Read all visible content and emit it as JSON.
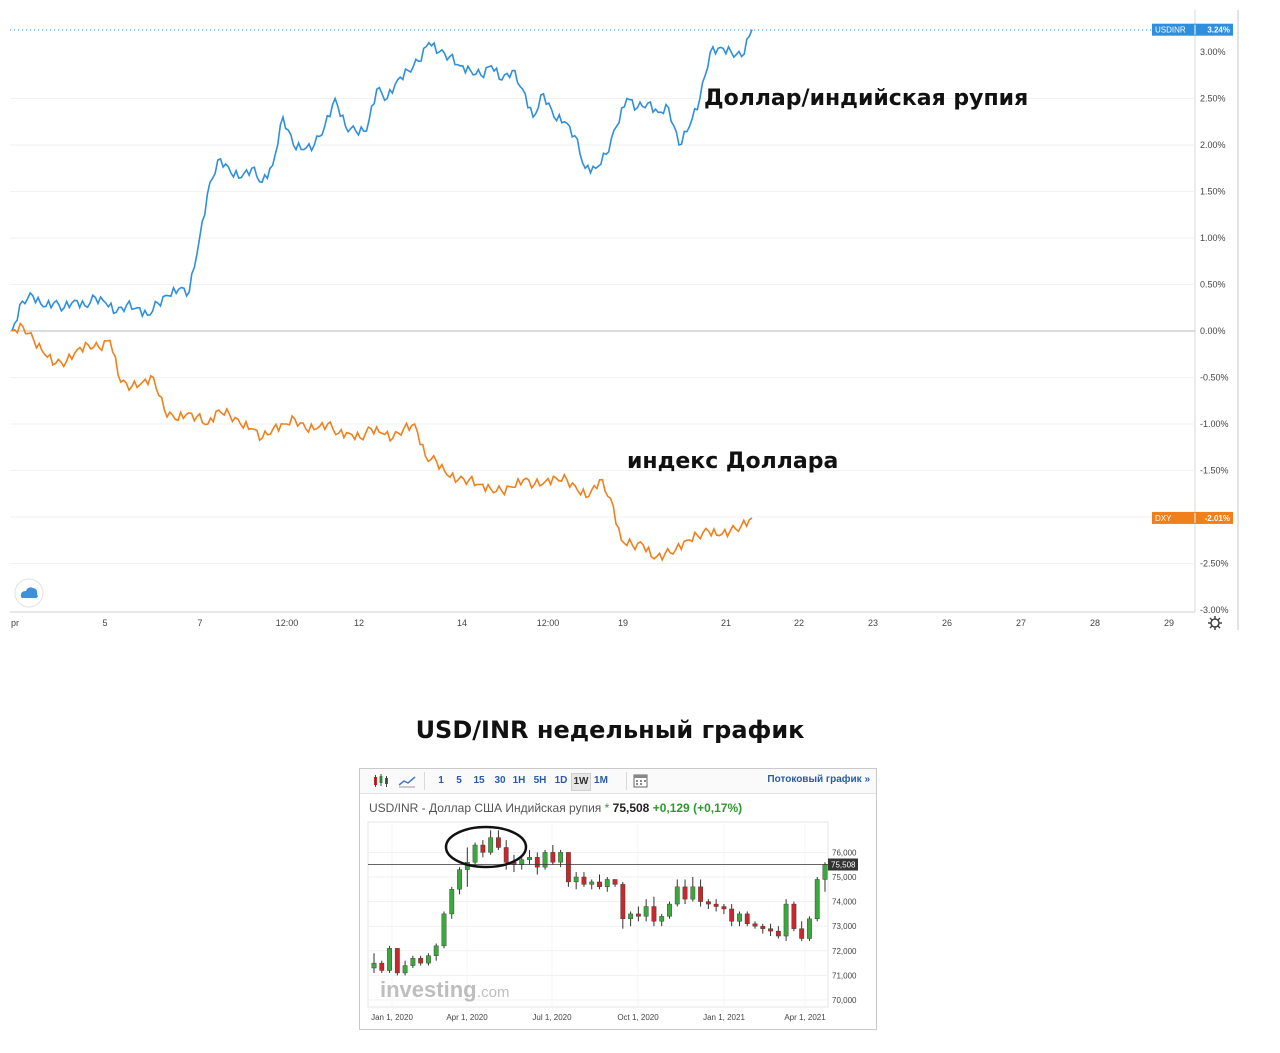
{
  "top_chart": {
    "chart_data": {
      "type": "line",
      "x_ticks": [
        "pr",
        "5",
        "7",
        "12:00",
        "12",
        "14",
        "12:00",
        "19",
        "21",
        "22",
        "23",
        "26",
        "27",
        "28",
        "29"
      ],
      "y_ticks": [
        "3.00%",
        "2.50%",
        "2.00%",
        "1.50%",
        "1.00%",
        "0.50%",
        "0.00%",
        "-0.50%",
        "-1.00%",
        "-1.50%",
        "-2.00%",
        "-2.50%",
        "-3.00%"
      ],
      "ylim": [
        -3.0,
        3.3
      ],
      "series": [
        {
          "name": "USDINR",
          "color": "#2f8fdf",
          "last_label": "3.24%",
          "values": [
            0.0,
            0.32,
            0.38,
            0.26,
            0.3,
            0.25,
            0.33,
            0.27,
            0.36,
            0.3,
            0.2,
            0.28,
            0.25,
            0.17,
            0.3,
            0.38,
            0.45,
            0.42,
            1.0,
            1.6,
            1.85,
            1.7,
            1.65,
            1.75,
            1.6,
            1.78,
            2.3,
            2.0,
            1.95,
            2.0,
            2.2,
            2.5,
            2.2,
            2.15,
            2.15,
            2.6,
            2.5,
            2.7,
            2.8,
            2.9,
            3.1,
            3.0,
            2.95,
            2.85,
            2.8,
            2.75,
            2.85,
            2.7,
            2.8,
            2.6,
            2.3,
            2.55,
            2.3,
            2.25,
            2.1,
            1.75,
            1.75,
            1.9,
            2.2,
            2.5,
            2.4,
            2.45,
            2.35,
            2.4,
            2.0,
            2.2,
            2.5,
            3.0,
            3.05,
            3.0,
            2.95,
            3.24
          ]
        },
        {
          "name": "DXY",
          "color": "#f0801c",
          "last_label": "-2.01%",
          "values": [
            0.0,
            0.05,
            -0.1,
            -0.25,
            -0.35,
            -0.33,
            -0.2,
            -0.15,
            -0.18,
            -0.1,
            -0.55,
            -0.6,
            -0.55,
            -0.5,
            -0.85,
            -0.95,
            -0.9,
            -0.92,
            -1.0,
            -0.85,
            -0.9,
            -1.0,
            -1.05,
            -1.15,
            -1.05,
            -1.0,
            -0.95,
            -1.05,
            -1.05,
            -1.0,
            -1.1,
            -1.1,
            -1.15,
            -1.05,
            -1.1,
            -1.15,
            -1.05,
            -1.0,
            -1.35,
            -1.4,
            -1.55,
            -1.6,
            -1.6,
            -1.65,
            -1.7,
            -1.72,
            -1.68,
            -1.6,
            -1.65,
            -1.62,
            -1.58,
            -1.6,
            -1.72,
            -1.78,
            -1.6,
            -1.8,
            -2.25,
            -2.3,
            -2.3,
            -2.45,
            -2.4,
            -2.35,
            -2.25,
            -2.2,
            -2.15,
            -2.2,
            -2.15,
            -2.1,
            -2.01
          ]
        }
      ]
    },
    "annotation_usdinr": "Доллар/индийская рупия",
    "annotation_dxy": "индекс Доллара",
    "settings_icon": "gear-icon",
    "logo_icon": "cloud-logo-icon"
  },
  "section_title": "USD/INR недельный график",
  "widget": {
    "toolbar": {
      "chart_type_icons": [
        "candlestick-icon",
        "line-chart-icon"
      ],
      "intervals": [
        "1",
        "5",
        "15",
        "30",
        "1H",
        "5H",
        "1D",
        "1W",
        "1M"
      ],
      "active_interval": "1W",
      "calendar_icon": "calendar-icon",
      "stream_link": "Потоковый график »"
    },
    "header": {
      "instrument": "USD/INR - Доллар США Индийская рупия",
      "star": "*",
      "price": "75,508",
      "change": "+0,129",
      "change_pct": "(+0,17%)"
    },
    "watermark": "investing",
    "watermark_suffix": ".com",
    "chart_data": {
      "type": "candlestick",
      "x_ticks": [
        "Jan 1, 2020",
        "Apr 1, 2020",
        "Jul 1, 2020",
        "Oct 1, 2020",
        "Jan 1, 2021",
        "Apr 1, 2021"
      ],
      "y_ticks": [
        "76,000",
        "75,000",
        "74,000",
        "73,000",
        "72,000",
        "71,000",
        "70,000"
      ],
      "ylim": [
        69.8,
        77.0
      ],
      "current_price_label": "75,508",
      "current_price": 75.508,
      "up_color": "#3aa83a",
      "down_color": "#c8282b",
      "candles": [
        [
          71.3,
          71.9,
          71.1,
          71.5
        ],
        [
          71.5,
          71.6,
          71.1,
          71.2
        ],
        [
          71.2,
          72.2,
          71.1,
          72.1
        ],
        [
          72.1,
          72.1,
          71.0,
          71.1
        ],
        [
          71.1,
          71.6,
          71.0,
          71.4
        ],
        [
          71.4,
          71.8,
          71.3,
          71.7
        ],
        [
          71.7,
          71.8,
          71.4,
          71.5
        ],
        [
          71.5,
          71.9,
          71.4,
          71.8
        ],
        [
          71.8,
          72.3,
          71.6,
          72.2
        ],
        [
          72.2,
          73.6,
          72.1,
          73.5
        ],
        [
          73.5,
          74.6,
          73.3,
          74.5
        ],
        [
          74.5,
          75.4,
          74.3,
          75.3
        ],
        [
          75.3,
          76.2,
          74.6,
          75.6
        ],
        [
          75.6,
          76.4,
          75.4,
          76.3
        ],
        [
          76.3,
          76.5,
          75.8,
          76.0
        ],
        [
          76.0,
          76.9,
          75.9,
          76.6
        ],
        [
          76.6,
          76.9,
          76.1,
          76.2
        ],
        [
          76.2,
          76.5,
          75.3,
          75.6
        ],
        [
          75.6,
          75.9,
          75.2,
          75.5
        ],
        [
          75.5,
          75.9,
          75.3,
          75.7
        ],
        [
          75.7,
          76.1,
          75.5,
          75.8
        ],
        [
          75.8,
          76.0,
          75.1,
          75.4
        ],
        [
          75.4,
          76.1,
          75.3,
          76.0
        ],
        [
          76.0,
          76.3,
          75.5,
          75.6
        ],
        [
          75.6,
          76.1,
          75.4,
          76.0
        ],
        [
          76.0,
          76.0,
          74.6,
          74.8
        ],
        [
          74.8,
          75.2,
          74.5,
          75.0
        ],
        [
          75.0,
          75.2,
          74.6,
          74.7
        ],
        [
          74.7,
          74.9,
          74.5,
          74.8
        ],
        [
          74.8,
          75.1,
          74.5,
          74.6
        ],
        [
          74.6,
          75.0,
          74.4,
          74.9
        ],
        [
          74.9,
          74.9,
          74.6,
          74.7
        ],
        [
          74.7,
          74.8,
          72.9,
          73.3
        ],
        [
          73.3,
          73.6,
          73.0,
          73.5
        ],
        [
          73.5,
          73.8,
          73.2,
          73.4
        ],
        [
          73.4,
          74.1,
          73.2,
          73.8
        ],
        [
          73.8,
          74.2,
          73.0,
          73.2
        ],
        [
          73.2,
          73.5,
          73.0,
          73.4
        ],
        [
          73.4,
          74.0,
          73.3,
          73.9
        ],
        [
          73.9,
          74.9,
          73.8,
          74.6
        ],
        [
          74.6,
          74.9,
          73.9,
          74.1
        ],
        [
          74.1,
          75.0,
          74.0,
          74.6
        ],
        [
          74.6,
          74.9,
          73.8,
          74.0
        ],
        [
          74.0,
          74.1,
          73.7,
          73.9
        ],
        [
          73.9,
          74.1,
          73.6,
          73.8
        ],
        [
          73.8,
          73.9,
          73.5,
          73.7
        ],
        [
          73.7,
          73.9,
          73.0,
          73.2
        ],
        [
          73.2,
          73.6,
          73.0,
          73.5
        ],
        [
          73.5,
          73.6,
          73.0,
          73.1
        ],
        [
          73.1,
          73.2,
          72.9,
          73.0
        ],
        [
          73.0,
          73.1,
          72.7,
          72.9
        ],
        [
          72.9,
          73.1,
          72.6,
          72.8
        ],
        [
          72.8,
          73.0,
          72.5,
          72.6
        ],
        [
          72.6,
          74.1,
          72.4,
          73.9
        ],
        [
          73.9,
          74.0,
          72.8,
          72.9
        ],
        [
          72.9,
          73.2,
          72.4,
          72.5
        ],
        [
          72.5,
          73.4,
          72.4,
          73.3
        ],
        [
          73.3,
          75.0,
          73.2,
          74.9
        ],
        [
          74.9,
          75.6,
          74.4,
          75.5
        ]
      ]
    }
  }
}
